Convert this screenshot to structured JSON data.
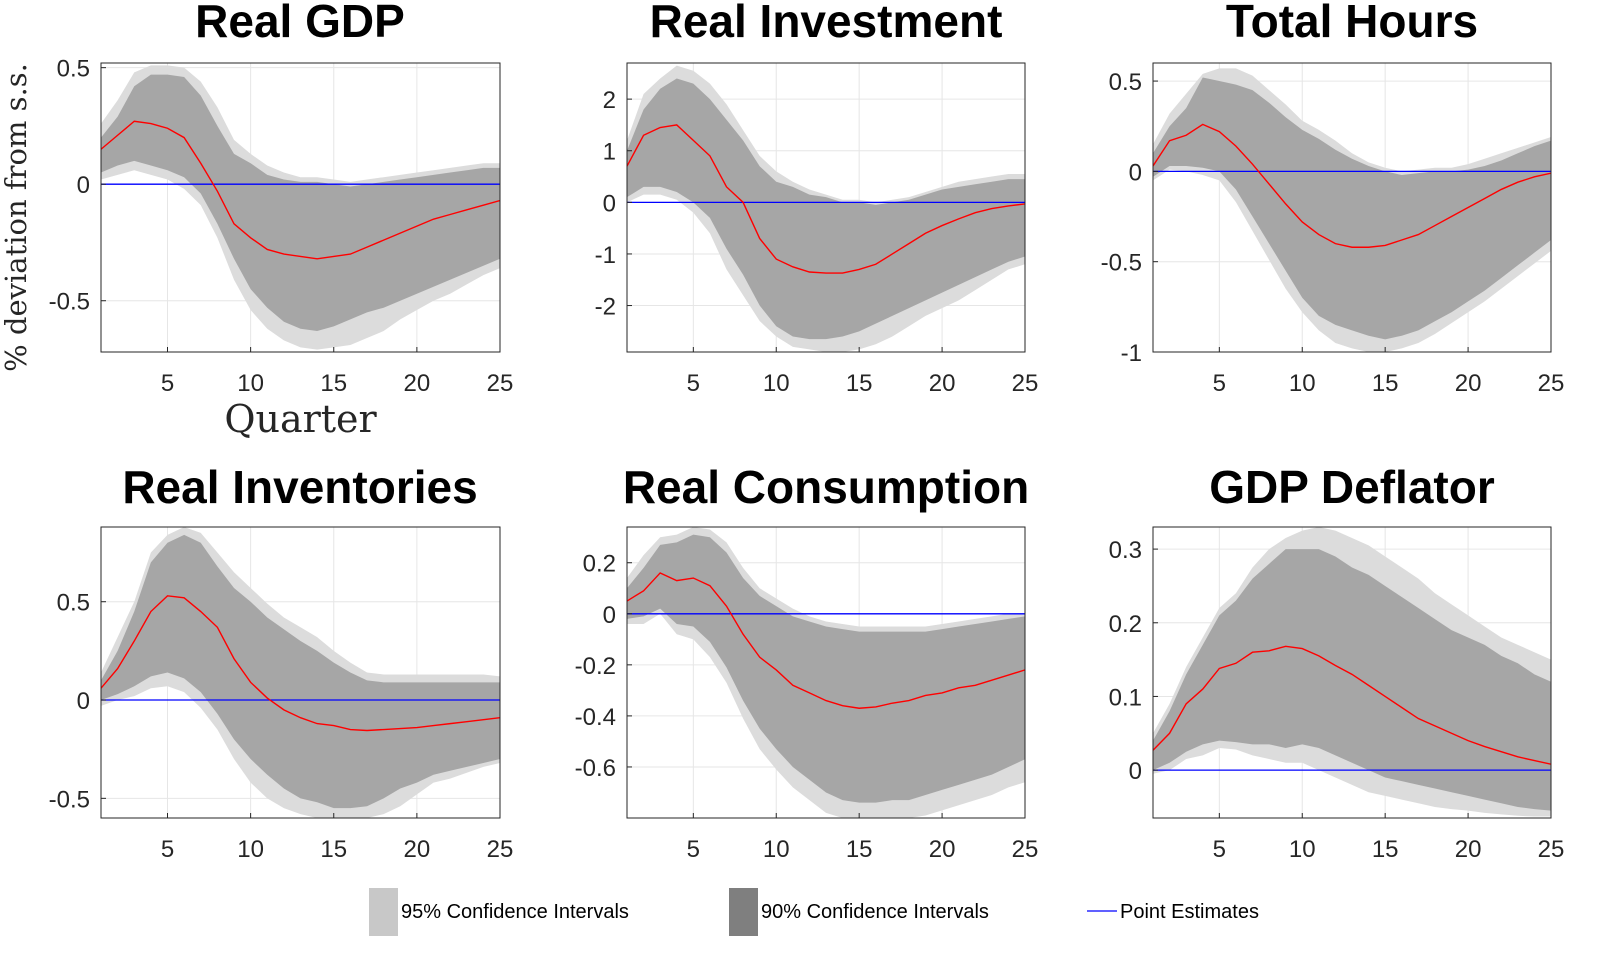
{
  "legend": {
    "ci95_label": "95% Confidence Intervals",
    "ci90_label": "90% Confidence Intervals",
    "point_label": "Point Estimates"
  },
  "colors": {
    "ci95": "#dcdcdc",
    "ci90": "#a6a6a6",
    "point": "#ff0000",
    "zero_line": "#0000ff",
    "grid": "#e6e6e6",
    "axis": "#262626",
    "legend_ci95": "#c8c8c8",
    "legend_ci90": "#7f7f7f"
  },
  "chart_data": [
    {
      "type": "area",
      "title": "Real GDP",
      "ylabel": "% deviation from s.s.",
      "xlabel": "Quarter",
      "xlim": [
        1,
        25
      ],
      "ylim": [
        -0.72,
        0.52
      ],
      "xticks": [
        5,
        10,
        15,
        20,
        25
      ],
      "yticks": [
        -0.5,
        0,
        0.5
      ],
      "ytick_labels": [
        "-0.5",
        "0",
        "0.5"
      ],
      "x": [
        1,
        2,
        3,
        4,
        5,
        6,
        7,
        8,
        9,
        10,
        11,
        12,
        13,
        14,
        15,
        16,
        17,
        18,
        19,
        20,
        21,
        22,
        23,
        24,
        25
      ],
      "point": [
        0.15,
        0.21,
        0.27,
        0.26,
        0.24,
        0.2,
        0.09,
        -0.03,
        -0.17,
        -0.23,
        -0.28,
        -0.3,
        -0.31,
        -0.32,
        -0.31,
        -0.3,
        -0.27,
        -0.24,
        -0.21,
        -0.18,
        -0.15,
        -0.13,
        -0.11,
        -0.09,
        -0.07
      ],
      "ci90_upper": [
        0.2,
        0.29,
        0.42,
        0.47,
        0.47,
        0.46,
        0.38,
        0.25,
        0.13,
        0.09,
        0.04,
        0.02,
        0.01,
        0.01,
        0.0,
        -0.01,
        0.0,
        0.01,
        0.02,
        0.03,
        0.04,
        0.05,
        0.06,
        0.07,
        0.07
      ],
      "ci90_lower": [
        0.05,
        0.08,
        0.1,
        0.08,
        0.06,
        0.03,
        -0.04,
        -0.17,
        -0.32,
        -0.45,
        -0.53,
        -0.59,
        -0.62,
        -0.63,
        -0.61,
        -0.58,
        -0.55,
        -0.53,
        -0.5,
        -0.47,
        -0.44,
        -0.41,
        -0.38,
        -0.35,
        -0.32
      ],
      "ci95_upper": [
        0.26,
        0.36,
        0.48,
        0.51,
        0.51,
        0.5,
        0.44,
        0.33,
        0.19,
        0.13,
        0.08,
        0.05,
        0.03,
        0.03,
        0.02,
        0.01,
        0.02,
        0.03,
        0.04,
        0.05,
        0.06,
        0.07,
        0.08,
        0.09,
        0.09
      ],
      "ci95_lower": [
        0.02,
        0.04,
        0.06,
        0.04,
        0.02,
        -0.02,
        -0.09,
        -0.23,
        -0.41,
        -0.54,
        -0.62,
        -0.67,
        -0.7,
        -0.71,
        -0.7,
        -0.69,
        -0.66,
        -0.63,
        -0.58,
        -0.54,
        -0.5,
        -0.47,
        -0.43,
        -0.39,
        -0.36
      ]
    },
    {
      "type": "area",
      "title": "Real Investment",
      "xlim": [
        1,
        25
      ],
      "ylim": [
        -2.9,
        2.7
      ],
      "xticks": [
        5,
        10,
        15,
        20,
        25
      ],
      "yticks": [
        -2,
        -1,
        0,
        1,
        2
      ],
      "ytick_labels": [
        "-2",
        "-1",
        "0",
        "1",
        "2"
      ],
      "x": [
        1,
        2,
        3,
        4,
        5,
        6,
        7,
        8,
        9,
        10,
        11,
        12,
        13,
        14,
        15,
        16,
        17,
        18,
        19,
        20,
        21,
        22,
        23,
        24,
        25
      ],
      "point": [
        0.7,
        1.3,
        1.45,
        1.5,
        1.2,
        0.9,
        0.3,
        0.0,
        -0.7,
        -1.1,
        -1.25,
        -1.35,
        -1.37,
        -1.37,
        -1.3,
        -1.2,
        -1.0,
        -0.8,
        -0.6,
        -0.45,
        -0.32,
        -0.2,
        -0.12,
        -0.07,
        -0.03
      ],
      "ci90_upper": [
        1.0,
        1.8,
        2.2,
        2.4,
        2.3,
        2.0,
        1.6,
        1.2,
        0.7,
        0.4,
        0.3,
        0.15,
        0.1,
        0.0,
        0.0,
        -0.05,
        0.0,
        0.05,
        0.15,
        0.25,
        0.3,
        0.35,
        0.4,
        0.45,
        0.45
      ],
      "ci90_lower": [
        0.1,
        0.3,
        0.3,
        0.2,
        0.0,
        -0.3,
        -0.9,
        -1.4,
        -2.0,
        -2.4,
        -2.6,
        -2.65,
        -2.65,
        -2.6,
        -2.5,
        -2.35,
        -2.2,
        -2.05,
        -1.9,
        -1.75,
        -1.6,
        -1.45,
        -1.3,
        -1.15,
        -1.05
      ],
      "ci95_upper": [
        1.2,
        2.1,
        2.4,
        2.65,
        2.55,
        2.3,
        1.9,
        1.4,
        0.9,
        0.6,
        0.4,
        0.25,
        0.15,
        0.05,
        0.05,
        0.0,
        0.05,
        0.1,
        0.2,
        0.3,
        0.4,
        0.45,
        0.5,
        0.55,
        0.55
      ],
      "ci95_lower": [
        0.0,
        0.15,
        0.15,
        0.05,
        -0.2,
        -0.6,
        -1.3,
        -1.8,
        -2.3,
        -2.6,
        -2.8,
        -2.85,
        -2.9,
        -2.9,
        -2.85,
        -2.75,
        -2.6,
        -2.4,
        -2.2,
        -2.05,
        -1.9,
        -1.7,
        -1.5,
        -1.3,
        -1.2
      ]
    },
    {
      "type": "area",
      "title": "Total Hours",
      "xlim": [
        1,
        25
      ],
      "ylim": [
        -1.0,
        0.6
      ],
      "xticks": [
        5,
        10,
        15,
        20,
        25
      ],
      "yticks": [
        -1,
        -0.5,
        0,
        0.5
      ],
      "ytick_labels": [
        "-1",
        "-0.5",
        "0",
        "0.5"
      ],
      "x": [
        1,
        2,
        3,
        4,
        5,
        6,
        7,
        8,
        9,
        10,
        11,
        12,
        13,
        14,
        15,
        16,
        17,
        18,
        19,
        20,
        21,
        22,
        23,
        24,
        25
      ],
      "point": [
        0.03,
        0.17,
        0.2,
        0.26,
        0.22,
        0.14,
        0.04,
        -0.07,
        -0.18,
        -0.28,
        -0.35,
        -0.4,
        -0.42,
        -0.42,
        -0.41,
        -0.38,
        -0.35,
        -0.3,
        -0.25,
        -0.2,
        -0.15,
        -0.1,
        -0.06,
        -0.03,
        -0.01
      ],
      "ci90_upper": [
        0.1,
        0.25,
        0.35,
        0.52,
        0.5,
        0.48,
        0.45,
        0.38,
        0.3,
        0.23,
        0.18,
        0.12,
        0.07,
        0.03,
        0.0,
        -0.02,
        -0.01,
        0.0,
        0.0,
        0.01,
        0.03,
        0.06,
        0.1,
        0.14,
        0.17
      ],
      "ci90_lower": [
        -0.03,
        0.03,
        0.03,
        0.02,
        0.0,
        -0.1,
        -0.25,
        -0.4,
        -0.55,
        -0.7,
        -0.8,
        -0.85,
        -0.88,
        -0.91,
        -0.93,
        -0.91,
        -0.88,
        -0.83,
        -0.78,
        -0.72,
        -0.66,
        -0.59,
        -0.52,
        -0.45,
        -0.38
      ],
      "ci95_upper": [
        0.15,
        0.32,
        0.43,
        0.54,
        0.57,
        0.57,
        0.53,
        0.45,
        0.37,
        0.28,
        0.23,
        0.17,
        0.1,
        0.05,
        0.02,
        0.0,
        0.01,
        0.02,
        0.02,
        0.04,
        0.07,
        0.1,
        0.13,
        0.16,
        0.19
      ],
      "ci95_lower": [
        -0.05,
        0.01,
        0.0,
        -0.02,
        -0.05,
        -0.17,
        -0.33,
        -0.49,
        -0.65,
        -0.78,
        -0.88,
        -0.95,
        -0.98,
        -1.0,
        -1.0,
        -0.98,
        -0.95,
        -0.9,
        -0.84,
        -0.78,
        -0.72,
        -0.65,
        -0.58,
        -0.51,
        -0.44
      ]
    },
    {
      "type": "area",
      "title": "Real Inventories",
      "xlim": [
        1,
        25
      ],
      "ylim": [
        -0.6,
        0.88
      ],
      "xticks": [
        5,
        10,
        15,
        20,
        25
      ],
      "yticks": [
        -0.5,
        0,
        0.5
      ],
      "ytick_labels": [
        "-0.5",
        "0",
        "0.5"
      ],
      "x": [
        1,
        2,
        3,
        4,
        5,
        6,
        7,
        8,
        9,
        10,
        11,
        12,
        13,
        14,
        15,
        16,
        17,
        18,
        19,
        20,
        21,
        22,
        23,
        24,
        25
      ],
      "point": [
        0.06,
        0.16,
        0.3,
        0.45,
        0.53,
        0.52,
        0.45,
        0.37,
        0.21,
        0.09,
        0.01,
        -0.05,
        -0.09,
        -0.12,
        -0.13,
        -0.15,
        -0.155,
        -0.15,
        -0.145,
        -0.14,
        -0.13,
        -0.12,
        -0.11,
        -0.1,
        -0.09
      ],
      "ci90_upper": [
        0.1,
        0.25,
        0.45,
        0.7,
        0.8,
        0.84,
        0.8,
        0.68,
        0.57,
        0.5,
        0.42,
        0.36,
        0.3,
        0.25,
        0.19,
        0.14,
        0.1,
        0.09,
        0.09,
        0.09,
        0.09,
        0.09,
        0.09,
        0.09,
        0.09
      ],
      "ci90_lower": [
        0.0,
        0.03,
        0.07,
        0.12,
        0.14,
        0.11,
        0.04,
        -0.07,
        -0.2,
        -0.3,
        -0.38,
        -0.45,
        -0.5,
        -0.52,
        -0.55,
        -0.55,
        -0.54,
        -0.5,
        -0.45,
        -0.42,
        -0.38,
        -0.36,
        -0.34,
        -0.32,
        -0.3
      ],
      "ci95_upper": [
        0.14,
        0.32,
        0.5,
        0.75,
        0.84,
        0.88,
        0.85,
        0.75,
        0.65,
        0.57,
        0.49,
        0.42,
        0.37,
        0.32,
        0.25,
        0.19,
        0.14,
        0.13,
        0.13,
        0.13,
        0.13,
        0.13,
        0.13,
        0.13,
        0.12
      ],
      "ci95_lower": [
        -0.03,
        0.0,
        0.02,
        0.06,
        0.07,
        0.04,
        -0.04,
        -0.15,
        -0.3,
        -0.42,
        -0.5,
        -0.55,
        -0.58,
        -0.6,
        -0.6,
        -0.6,
        -0.6,
        -0.58,
        -0.54,
        -0.48,
        -0.42,
        -0.4,
        -0.37,
        -0.34,
        -0.32
      ]
    },
    {
      "type": "area",
      "title": "Real Consumption",
      "xlim": [
        1,
        25
      ],
      "ylim": [
        -0.8,
        0.34
      ],
      "xticks": [
        5,
        10,
        15,
        20,
        25
      ],
      "yticks": [
        -0.6,
        -0.4,
        -0.2,
        0,
        0.2
      ],
      "ytick_labels": [
        "-0.6",
        "-0.4",
        "-0.2",
        "0",
        "0.2"
      ],
      "x": [
        1,
        2,
        3,
        4,
        5,
        6,
        7,
        8,
        9,
        10,
        11,
        12,
        13,
        14,
        15,
        16,
        17,
        18,
        19,
        20,
        21,
        22,
        23,
        24,
        25
      ],
      "point": [
        0.05,
        0.09,
        0.16,
        0.13,
        0.14,
        0.11,
        0.03,
        -0.08,
        -0.17,
        -0.22,
        -0.28,
        -0.31,
        -0.34,
        -0.36,
        -0.37,
        -0.365,
        -0.35,
        -0.34,
        -0.32,
        -0.31,
        -0.29,
        -0.28,
        -0.26,
        -0.24,
        -0.22
      ],
      "ci90_upper": [
        0.1,
        0.18,
        0.27,
        0.28,
        0.31,
        0.3,
        0.24,
        0.14,
        0.07,
        0.03,
        -0.01,
        -0.03,
        -0.05,
        -0.06,
        -0.07,
        -0.07,
        -0.07,
        -0.07,
        -0.07,
        -0.06,
        -0.05,
        -0.04,
        -0.03,
        -0.02,
        -0.01
      ],
      "ci90_lower": [
        -0.02,
        -0.01,
        0.02,
        -0.04,
        -0.05,
        -0.11,
        -0.21,
        -0.34,
        -0.45,
        -0.53,
        -0.6,
        -0.65,
        -0.7,
        -0.73,
        -0.74,
        -0.74,
        -0.73,
        -0.73,
        -0.71,
        -0.69,
        -0.67,
        -0.65,
        -0.63,
        -0.6,
        -0.57
      ],
      "ci95_upper": [
        0.14,
        0.23,
        0.3,
        0.31,
        0.34,
        0.33,
        0.28,
        0.18,
        0.1,
        0.06,
        0.02,
        -0.01,
        -0.03,
        -0.04,
        -0.05,
        -0.05,
        -0.05,
        -0.05,
        -0.05,
        -0.04,
        -0.03,
        -0.02,
        -0.01,
        0.0,
        0.0
      ],
      "ci95_lower": [
        -0.04,
        -0.04,
        0.0,
        -0.08,
        -0.1,
        -0.17,
        -0.27,
        -0.41,
        -0.53,
        -0.61,
        -0.68,
        -0.73,
        -0.78,
        -0.8,
        -0.81,
        -0.81,
        -0.8,
        -0.8,
        -0.79,
        -0.77,
        -0.75,
        -0.73,
        -0.71,
        -0.68,
        -0.66
      ]
    },
    {
      "type": "area",
      "title": "GDP Deflator",
      "xlim": [
        1,
        25
      ],
      "ylim": [
        -0.065,
        0.33
      ],
      "xticks": [
        5,
        10,
        15,
        20,
        25
      ],
      "yticks": [
        0,
        0.1,
        0.2,
        0.3
      ],
      "ytick_labels": [
        "0",
        "0.1",
        "0.2",
        "0.3"
      ],
      "x": [
        1,
        2,
        3,
        4,
        5,
        6,
        7,
        8,
        9,
        10,
        11,
        12,
        13,
        14,
        15,
        16,
        17,
        18,
        19,
        20,
        21,
        22,
        23,
        24,
        25
      ],
      "point": [
        0.027,
        0.05,
        0.09,
        0.11,
        0.138,
        0.145,
        0.16,
        0.162,
        0.168,
        0.165,
        0.155,
        0.142,
        0.13,
        0.115,
        0.1,
        0.085,
        0.07,
        0.06,
        0.05,
        0.04,
        0.032,
        0.025,
        0.018,
        0.013,
        0.008
      ],
      "ci90_upper": [
        0.04,
        0.08,
        0.13,
        0.17,
        0.21,
        0.23,
        0.26,
        0.28,
        0.3,
        0.3,
        0.3,
        0.29,
        0.275,
        0.265,
        0.25,
        0.235,
        0.22,
        0.205,
        0.19,
        0.18,
        0.17,
        0.155,
        0.145,
        0.13,
        0.12
      ],
      "ci90_lower": [
        0.0,
        0.01,
        0.025,
        0.035,
        0.04,
        0.038,
        0.035,
        0.035,
        0.03,
        0.035,
        0.03,
        0.02,
        0.01,
        0.0,
        -0.01,
        -0.015,
        -0.02,
        -0.025,
        -0.03,
        -0.035,
        -0.04,
        -0.045,
        -0.05,
        -0.053,
        -0.055
      ],
      "ci95_upper": [
        0.05,
        0.09,
        0.14,
        0.18,
        0.22,
        0.24,
        0.275,
        0.3,
        0.315,
        0.325,
        0.33,
        0.325,
        0.315,
        0.305,
        0.29,
        0.275,
        0.26,
        0.24,
        0.225,
        0.21,
        0.195,
        0.18,
        0.17,
        0.16,
        0.15
      ],
      "ci95_lower": [
        -0.005,
        0.0,
        0.015,
        0.02,
        0.03,
        0.028,
        0.02,
        0.015,
        0.01,
        0.01,
        0.0,
        -0.01,
        -0.02,
        -0.03,
        -0.035,
        -0.04,
        -0.045,
        -0.05,
        -0.053,
        -0.055,
        -0.058,
        -0.06,
        -0.062,
        -0.063,
        -0.063
      ]
    }
  ]
}
